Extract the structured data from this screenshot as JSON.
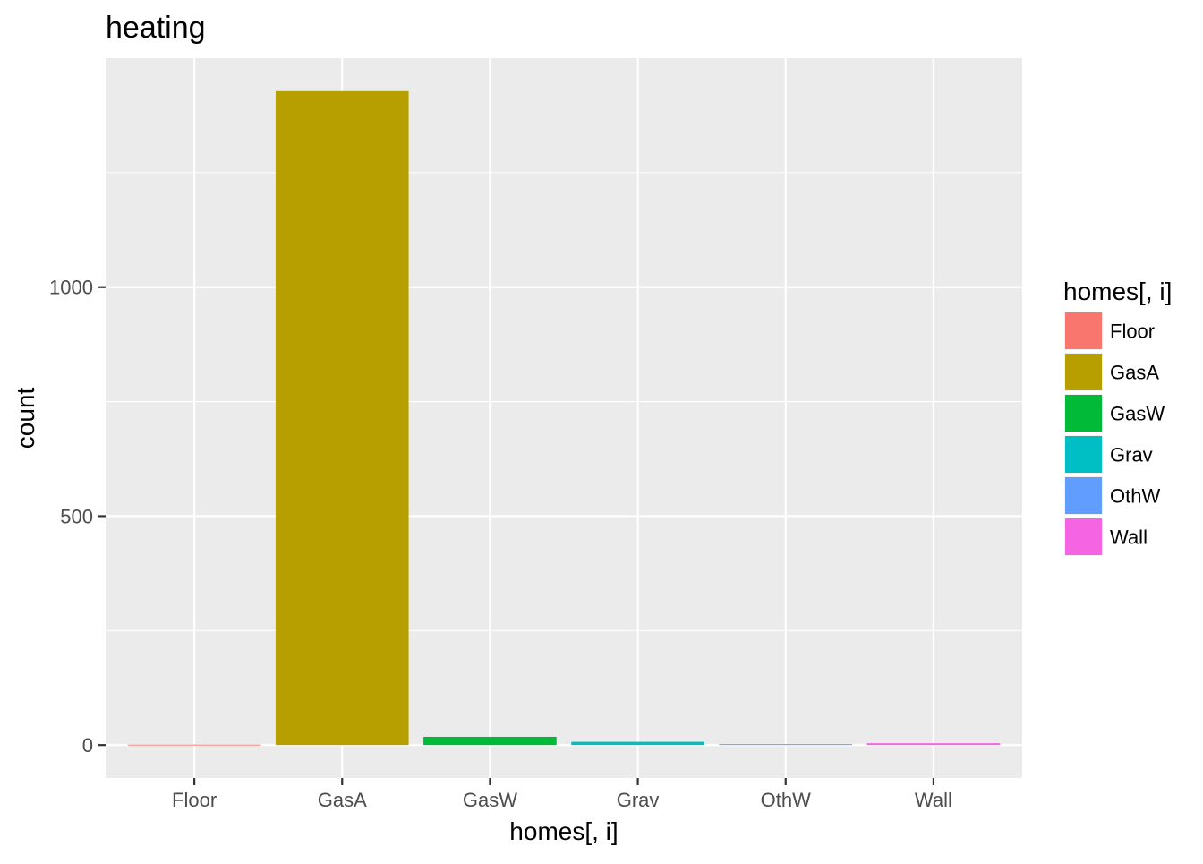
{
  "chart_data": {
    "type": "bar",
    "title": "heating",
    "xlabel": "homes[, i]",
    "ylabel": "count",
    "categories": [
      "Floor",
      "GasA",
      "GasW",
      "Grav",
      "OthW",
      "Wall"
    ],
    "values": [
      1,
      1428,
      18,
      7,
      2,
      4
    ],
    "colors": [
      "#F8766D",
      "#B79F00",
      "#00BA38",
      "#00BFC4",
      "#619CFF",
      "#F564E3"
    ],
    "ylim": [
      -72,
      1500
    ],
    "yticks": [
      0,
      500,
      1000
    ],
    "yticks_minor": [
      250,
      750,
      1250
    ],
    "grid": true,
    "panel_background": "#EBEBEB",
    "legend": {
      "title": "homes[, i]",
      "position": "right",
      "entries": [
        "Floor",
        "GasA",
        "GasW",
        "Grav",
        "OthW",
        "Wall"
      ]
    }
  }
}
